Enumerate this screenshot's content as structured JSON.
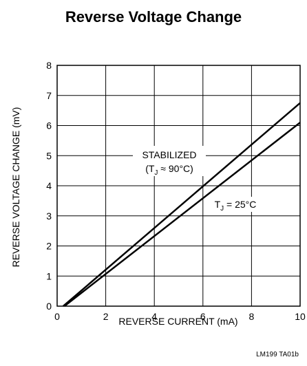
{
  "chart_data": {
    "type": "line",
    "title": "Reverse Voltage Change",
    "xlabel": "REVERSE CURRENT (mA)",
    "ylabel": "REVERSE VOLTAGE CHANGE (mV)",
    "xlim": [
      0,
      10
    ],
    "ylim": [
      0,
      8
    ],
    "x_ticks": [
      "0",
      "2",
      "4",
      "6",
      "8",
      "10"
    ],
    "y_ticks": [
      "0",
      "1",
      "2",
      "3",
      "4",
      "5",
      "6",
      "7",
      "8"
    ],
    "grid": true,
    "series": [
      {
        "name_line1": "STABILIZED",
        "name_line2": "(T",
        "name_sub": "J",
        "name_line2_rest": " ≈ 90°C)",
        "x": [
          0.25,
          10
        ],
        "y": [
          0,
          6.75
        ],
        "color": "#000000"
      },
      {
        "name_pre": "T",
        "name_sub": "J",
        "name_rest": " = 25°C",
        "x": [
          0.3,
          10
        ],
        "y": [
          0,
          6.1
        ],
        "color": "#000000"
      }
    ],
    "footer": "LM199 TA01b"
  }
}
